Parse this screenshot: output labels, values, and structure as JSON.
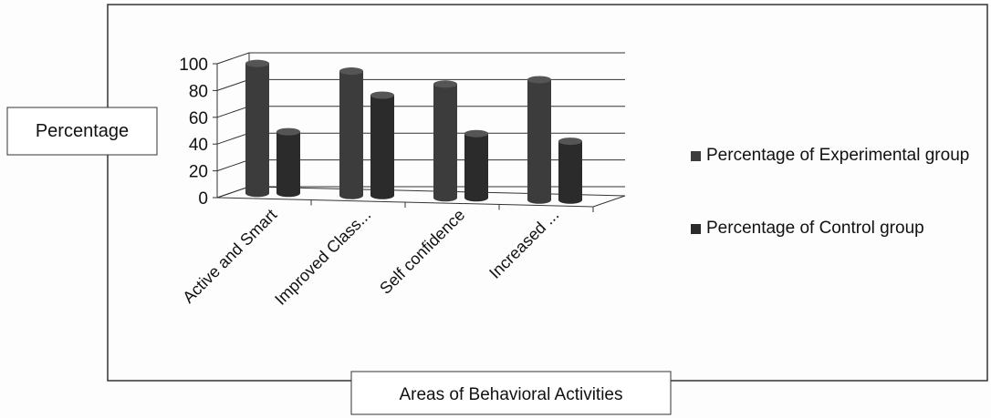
{
  "chart_data": {
    "type": "bar3d",
    "y_label": "Percentage",
    "x_label": "Areas of Behavioral Activities",
    "categories": [
      "Active and Smart",
      "Improved Class...",
      "Self confidence",
      "Increased ..."
    ],
    "series": [
      {
        "name": "Percentage of Experimental group",
        "color": "#3c3c3c",
        "values": [
          97,
          93,
          85,
          90
        ]
      },
      {
        "name": "Percentage of Control group",
        "color": "#2b2b2b",
        "values": [
          46,
          75,
          48,
          44
        ]
      }
    ],
    "ylim": [
      0,
      100
    ],
    "yticks": [
      0,
      20,
      40,
      60,
      80,
      100
    ],
    "grid": true,
    "legend": "right"
  }
}
